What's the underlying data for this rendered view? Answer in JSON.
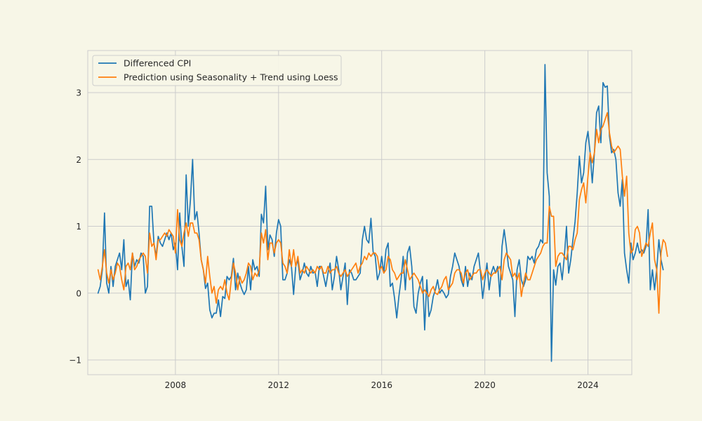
{
  "chart_data": {
    "type": "line",
    "title": "",
    "xlabel": "",
    "ylabel": "",
    "xlim": [
      2004.6,
      2025.7
    ],
    "ylim": [
      -1.22,
      3.63
    ],
    "grid": true,
    "legend_position": "top-left",
    "xticks": [
      2008,
      2012,
      2016,
      2020,
      2024
    ],
    "xtick_labels": [
      "2008",
      "2012",
      "2016",
      "2020",
      "2024"
    ],
    "yticks": [
      -1,
      0,
      1,
      2,
      3
    ],
    "ytick_labels": [
      "−1",
      "0",
      "1",
      "2",
      "3"
    ],
    "series": [
      {
        "name": "Differenced CPI",
        "color": "#1f77b4",
        "x_start": 2005.0,
        "x_step": 0.0833333,
        "values": [
          0.0,
          0.1,
          0.35,
          1.2,
          0.15,
          0.0,
          0.4,
          0.1,
          0.4,
          0.5,
          0.6,
          0.35,
          0.8,
          0.1,
          0.2,
          -0.1,
          0.6,
          0.4,
          0.5,
          0.45,
          0.6,
          0.55,
          0.0,
          0.1,
          1.3,
          1.3,
          0.75,
          0.55,
          0.85,
          0.75,
          0.7,
          0.8,
          0.9,
          0.8,
          0.9,
          0.65,
          0.75,
          0.35,
          1.2,
          0.7,
          0.4,
          1.77,
          1.0,
          1.4,
          2.0,
          1.1,
          1.22,
          0.9,
          0.5,
          0.35,
          0.07,
          0.15,
          -0.25,
          -0.37,
          -0.3,
          -0.3,
          -0.1,
          -0.35,
          -0.05,
          -0.08,
          0.25,
          0.2,
          0.25,
          0.52,
          0.05,
          0.3,
          0.15,
          0.05,
          -0.02,
          0.05,
          0.4,
          0.05,
          0.5,
          0.35,
          0.4,
          0.25,
          1.18,
          1.05,
          1.6,
          0.65,
          0.87,
          0.8,
          0.55,
          0.9,
          1.1,
          1.0,
          0.2,
          0.2,
          0.3,
          0.5,
          0.4,
          -0.02,
          0.4,
          0.5,
          0.2,
          0.3,
          0.45,
          0.3,
          0.25,
          0.4,
          0.3,
          0.32,
          0.1,
          0.4,
          0.4,
          0.25,
          0.1,
          0.3,
          0.45,
          0.05,
          0.25,
          0.55,
          0.35,
          0.05,
          0.25,
          0.45,
          -0.17,
          0.35,
          0.3,
          0.2,
          0.2,
          0.25,
          0.3,
          0.8,
          1.0,
          0.8,
          0.75,
          1.12,
          0.62,
          0.55,
          0.2,
          0.3,
          0.55,
          0.3,
          0.65,
          0.75,
          0.1,
          0.15,
          -0.08,
          -0.37,
          -0.05,
          0.2,
          0.55,
          0.05,
          0.6,
          0.7,
          0.4,
          -0.2,
          -0.3,
          0.0,
          0.15,
          0.25,
          -0.55,
          0.2,
          -0.35,
          -0.25,
          -0.05,
          0.05,
          0.2,
          0.0,
          0.05,
          0.0,
          -0.07,
          -0.02,
          0.25,
          0.4,
          0.6,
          0.5,
          0.4,
          0.2,
          0.1,
          0.4,
          0.1,
          0.3,
          0.2,
          0.4,
          0.5,
          0.6,
          0.3,
          -0.08,
          0.2,
          0.45,
          0.05,
          0.3,
          0.4,
          0.3,
          0.4,
          -0.05,
          0.7,
          0.95,
          0.7,
          0.4,
          0.3,
          0.2,
          -0.35,
          0.35,
          0.5,
          0.2,
          0.1,
          0.2,
          0.55,
          0.5,
          0.55,
          0.45,
          0.65,
          0.7,
          0.8,
          0.75,
          3.42,
          1.8,
          1.45,
          -1.02,
          0.35,
          0.12,
          0.4,
          0.45,
          0.2,
          0.55,
          1.0,
          0.3,
          0.5,
          0.8,
          1.07,
          1.5,
          2.05,
          1.65,
          1.8,
          2.25,
          2.42,
          2.1,
          1.65,
          2.1,
          2.7,
          2.8,
          2.25,
          3.15,
          3.08,
          3.1,
          2.35,
          2.1,
          2.15,
          2.0,
          1.5,
          1.3,
          1.7,
          0.6,
          0.35,
          0.15,
          0.75,
          0.5,
          0.6,
          0.75,
          0.6,
          0.65,
          0.6,
          0.7,
          1.25,
          0.05,
          0.35,
          0.05,
          0.35,
          0.8,
          0.5,
          0.35
        ]
      },
      {
        "name": "Prediction using Seasonality + Trend using Loess",
        "color": "#ff7f0e",
        "x_start": 2005.0,
        "x_step": 0.0833333,
        "values": [
          0.35,
          0.2,
          0.4,
          0.65,
          0.3,
          0.15,
          0.35,
          0.2,
          0.3,
          0.45,
          0.4,
          0.2,
          0.05,
          0.4,
          0.45,
          0.35,
          0.6,
          0.35,
          0.4,
          0.5,
          0.55,
          0.6,
          0.55,
          0.3,
          0.9,
          0.7,
          0.75,
          0.5,
          0.8,
          0.8,
          0.85,
          0.9,
          0.85,
          0.95,
          0.9,
          0.85,
          0.6,
          1.25,
          0.8,
          0.7,
          0.9,
          1.05,
          0.85,
          1.05,
          1.05,
          0.9,
          0.9,
          0.8,
          0.5,
          0.35,
          0.15,
          0.55,
          0.25,
          0.0,
          0.1,
          -0.15,
          0.05,
          0.1,
          0.05,
          0.2,
          0.0,
          -0.1,
          0.2,
          0.45,
          0.3,
          0.05,
          0.25,
          0.15,
          0.2,
          0.3,
          0.45,
          0.4,
          0.2,
          0.3,
          0.25,
          0.35,
          0.9,
          0.75,
          0.95,
          0.5,
          0.75,
          0.75,
          0.6,
          0.75,
          0.8,
          0.75,
          0.45,
          0.4,
          0.3,
          0.65,
          0.4,
          0.65,
          0.4,
          0.55,
          0.3,
          0.35,
          0.3,
          0.4,
          0.35,
          0.3,
          0.35,
          0.3,
          0.4,
          0.35,
          0.4,
          0.3,
          0.3,
          0.4,
          0.3,
          0.35,
          0.35,
          0.4,
          0.3,
          0.25,
          0.3,
          0.35,
          0.25,
          0.3,
          0.35,
          0.4,
          0.45,
          0.3,
          0.4,
          0.45,
          0.55,
          0.5,
          0.6,
          0.55,
          0.6,
          0.6,
          0.55,
          0.35,
          0.4,
          0.3,
          0.35,
          0.55,
          0.5,
          0.35,
          0.3,
          0.2,
          0.25,
          0.3,
          0.3,
          0.5,
          0.35,
          0.2,
          0.25,
          0.3,
          0.25,
          0.2,
          0.1,
          0.0,
          0.05,
          0.0,
          -0.05,
          0.05,
          0.1,
          0.0,
          -0.02,
          0.05,
          0.1,
          0.2,
          0.25,
          0.05,
          0.1,
          0.15,
          0.3,
          0.35,
          0.35,
          0.3,
          0.15,
          0.3,
          0.35,
          0.2,
          0.25,
          0.3,
          0.3,
          0.35,
          0.35,
          0.2,
          0.3,
          0.35,
          0.3,
          0.25,
          0.3,
          0.3,
          0.35,
          0.4,
          0.2,
          0.5,
          0.6,
          0.55,
          0.5,
          0.25,
          0.3,
          0.2,
          0.3,
          -0.05,
          0.15,
          0.3,
          0.2,
          0.2,
          0.3,
          0.4,
          0.5,
          0.55,
          0.6,
          0.7,
          0.75,
          0.75,
          1.3,
          1.15,
          1.15,
          0.4,
          0.55,
          0.6,
          0.6,
          0.55,
          0.5,
          0.7,
          0.7,
          0.65,
          0.8,
          0.9,
          1.4,
          1.55,
          1.65,
          1.35,
          1.75,
          2.1,
          1.95,
          2.1,
          2.45,
          2.25,
          2.45,
          2.5,
          2.6,
          2.7,
          2.4,
          2.2,
          2.1,
          2.15,
          2.2,
          2.15,
          1.75,
          1.45,
          1.75,
          0.9,
          0.6,
          0.65,
          0.95,
          1.0,
          0.9,
          0.55,
          0.65,
          0.75,
          0.7,
          0.9,
          1.05,
          0.5,
          0.35,
          -0.3,
          0.6,
          0.8,
          0.75,
          0.55
        ]
      }
    ]
  }
}
